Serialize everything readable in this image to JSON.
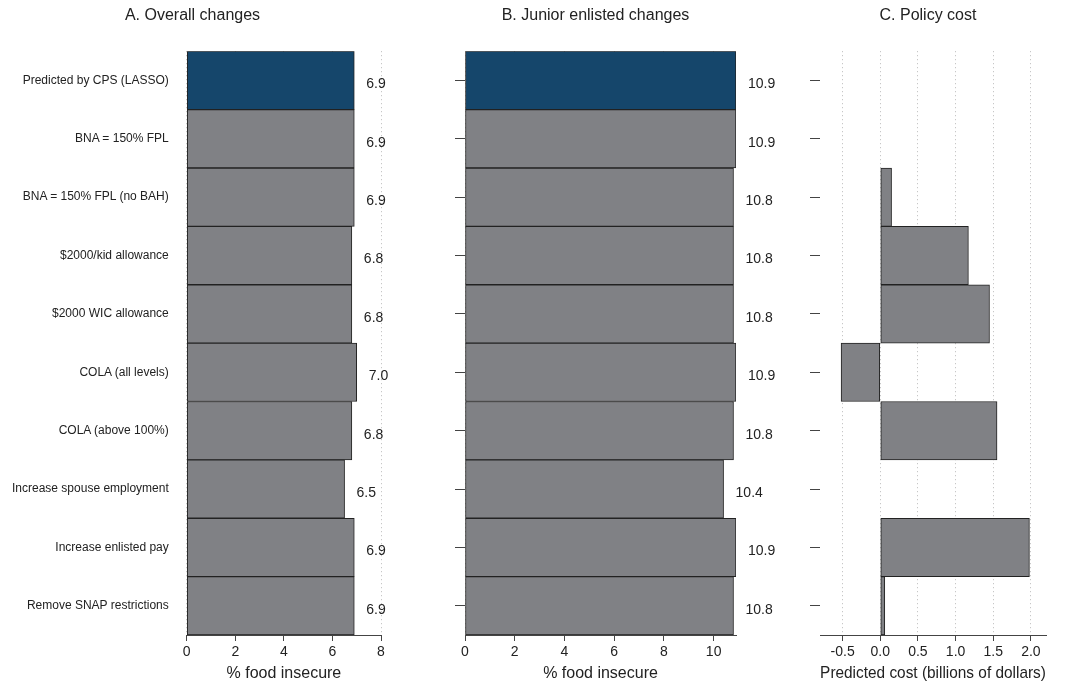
{
  "chart_data": [
    {
      "type": "bar",
      "orientation": "horizontal",
      "title": "A. Overall changes",
      "xlabel": "% food insecure",
      "categories": [
        "Predicted by CPS (LASSO)",
        "BNA = 150% FPL",
        "BNA = 150% FPL (no BAH)",
        "$2000/kid allowance",
        "$2000 WIC allowance",
        "COLA (all levels)",
        "COLA (above 100%)",
        "Increase spouse employment",
        "Increase enlisted pay",
        "Remove SNAP restrictions"
      ],
      "values": [
        6.9,
        6.9,
        6.9,
        6.8,
        6.8,
        7.0,
        6.8,
        6.5,
        6.9,
        6.9
      ],
      "value_labels": [
        "6.9",
        "6.9",
        "6.9",
        "6.8",
        "6.8",
        "7.0",
        "6.8",
        "6.5",
        "6.9",
        "6.9"
      ],
      "colors": [
        "#15466b",
        "#808185",
        "#808185",
        "#808185",
        "#808185",
        "#808185",
        "#808185",
        "#808185",
        "#808185",
        "#808185"
      ],
      "xlim": [
        0,
        8
      ],
      "xticks": [
        0,
        2,
        4,
        6,
        8
      ],
      "grid": "x",
      "legend": false
    },
    {
      "type": "bar",
      "orientation": "horizontal",
      "title": "B. Junior enlisted changes",
      "xlabel": "% food insecure",
      "categories": [
        null,
        null,
        null,
        null,
        null,
        null,
        null,
        null,
        null,
        null
      ],
      "values": [
        10.9,
        10.9,
        10.8,
        10.8,
        10.8,
        10.9,
        10.8,
        10.4,
        10.9,
        10.8
      ],
      "value_labels": [
        "10.9",
        "10.9",
        "10.8",
        "10.8",
        "10.8",
        "10.9",
        "10.8",
        "10.4",
        "10.9",
        "10.8"
      ],
      "colors": [
        "#15466b",
        "#808185",
        "#808185",
        "#808185",
        "#808185",
        "#808185",
        "#808185",
        "#808185",
        "#808185",
        "#808185"
      ],
      "xlim": [
        0,
        10.9
      ],
      "xticks": [
        0,
        2,
        4,
        6,
        8,
        10
      ],
      "grid": "x",
      "legend": false,
      "tick_labels": "x"
    },
    {
      "type": "bar",
      "orientation": "horizontal",
      "title": "C. Policy cost",
      "xlabel": "Predicted cost (billions of dollars)",
      "categories": [
        null,
        null,
        null,
        null,
        null,
        null,
        null,
        null,
        null,
        null
      ],
      "values": [
        null,
        0,
        0.15,
        1.17,
        1.45,
        -0.52,
        1.55,
        null,
        1.98,
        0.06
      ],
      "colors": [
        "#808185",
        "#808185",
        "#808185",
        "#808185",
        "#808185",
        "#808185",
        "#808185",
        "#808185",
        "#808185",
        "#808185"
      ],
      "xlim": [
        -0.8,
        2.2
      ],
      "xticks": [
        -0.5,
        {
          "value": 0,
          "label": "0.0"
        },
        0.5,
        {
          "value": 1,
          "label": "1.0"
        },
        1.5,
        {
          "value": 2,
          "label": "2.0"
        }
      ],
      "grid": "x",
      "legend": false,
      "tick_labels": "x"
    }
  ]
}
